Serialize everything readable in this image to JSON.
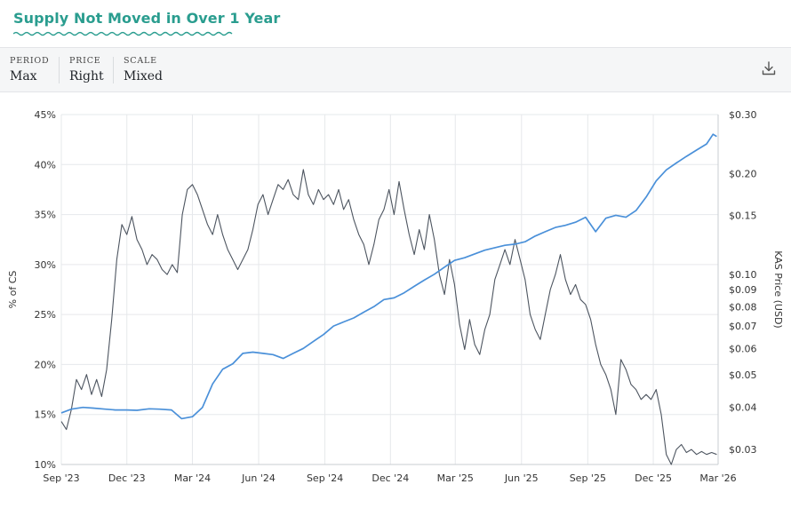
{
  "title": "Supply Not Moved in Over 1 Year",
  "controls": [
    {
      "label": "PERIOD",
      "value": "Max"
    },
    {
      "label": "PRICE",
      "value": "Right"
    },
    {
      "label": "SCALE",
      "value": "Mixed"
    }
  ],
  "download_icon": "download-icon",
  "colors": {
    "title": "#2a9d8f",
    "price_line": "#4a90d9",
    "supply_line": "#4d5560",
    "grid": "#e6e8eb"
  },
  "chart_data": {
    "type": "line",
    "xlabel": "",
    "ylabel_left": "% of CS",
    "ylabel_right": "KAS Price (USD)",
    "x_range": [
      "2023-09-01",
      "2026-03-01"
    ],
    "x_ticks": [
      "Sep '23",
      "Dec '23",
      "Mar '24",
      "Jun '24",
      "Sep '24",
      "Dec '24",
      "Mar '25",
      "Jun '25",
      "Sep '25",
      "Dec '25",
      "Mar '26"
    ],
    "y_left": {
      "min": 10,
      "max": 45,
      "ticks": [
        "10%",
        "15%",
        "20%",
        "25%",
        "30%",
        "35%",
        "40%",
        "45%"
      ]
    },
    "y_right": {
      "scale": "log",
      "min": 0.027,
      "max": 0.3,
      "ticks": [
        {
          "value": 0.3,
          "label": "$0.30"
        },
        {
          "value": 0.2,
          "label": "$0.20"
        },
        {
          "value": 0.15,
          "label": "$0.15"
        },
        {
          "value": 0.1,
          "label": "$0.10"
        },
        {
          "value": 0.09,
          "label": "$0.09"
        },
        {
          "value": 0.08,
          "label": "$0.08"
        },
        {
          "value": 0.07,
          "label": "$0.07"
        },
        {
          "value": 0.06,
          "label": "$0.06"
        },
        {
          "value": 0.05,
          "label": "$0.05"
        },
        {
          "value": 0.04,
          "label": "$0.04"
        },
        {
          "value": 0.03,
          "label": "$0.03"
        }
      ]
    },
    "grid": true,
    "series": [
      {
        "axis": "left",
        "color": "#4d5560",
        "points": [
          [
            "2023-09-01",
            14.3
          ],
          [
            "2023-09-08",
            13.5
          ],
          [
            "2023-09-15",
            15.5
          ],
          [
            "2023-09-22",
            18.5
          ],
          [
            "2023-09-29",
            17.5
          ],
          [
            "2023-10-06",
            19.0
          ],
          [
            "2023-10-13",
            17.0
          ],
          [
            "2023-10-20",
            18.5
          ],
          [
            "2023-10-27",
            16.8
          ],
          [
            "2023-11-03",
            19.5
          ],
          [
            "2023-11-10",
            24.5
          ],
          [
            "2023-11-17",
            30.5
          ],
          [
            "2023-11-24",
            34.0
          ],
          [
            "2023-12-01",
            33.0
          ],
          [
            "2023-12-08",
            34.8
          ],
          [
            "2023-12-15",
            32.5
          ],
          [
            "2023-12-22",
            31.5
          ],
          [
            "2023-12-29",
            30.0
          ],
          [
            "2024-01-05",
            31.0
          ],
          [
            "2024-01-12",
            30.5
          ],
          [
            "2024-01-19",
            29.5
          ],
          [
            "2024-01-26",
            29.0
          ],
          [
            "2024-02-02",
            30.0
          ],
          [
            "2024-02-09",
            29.2
          ],
          [
            "2024-02-16",
            35.0
          ],
          [
            "2024-02-23",
            37.5
          ],
          [
            "2024-03-01",
            38.0
          ],
          [
            "2024-03-08",
            37.0
          ],
          [
            "2024-03-15",
            35.5
          ],
          [
            "2024-03-22",
            34.0
          ],
          [
            "2024-03-29",
            33.0
          ],
          [
            "2024-04-05",
            35.0
          ],
          [
            "2024-04-12",
            33.0
          ],
          [
            "2024-04-19",
            31.5
          ],
          [
            "2024-04-26",
            30.5
          ],
          [
            "2024-05-03",
            29.5
          ],
          [
            "2024-05-10",
            30.5
          ],
          [
            "2024-05-17",
            31.5
          ],
          [
            "2024-05-24",
            33.5
          ],
          [
            "2024-05-31",
            36.0
          ],
          [
            "2024-06-07",
            37.0
          ],
          [
            "2024-06-14",
            35.0
          ],
          [
            "2024-06-21",
            36.5
          ],
          [
            "2024-06-28",
            38.0
          ],
          [
            "2024-07-05",
            37.5
          ],
          [
            "2024-07-12",
            38.5
          ],
          [
            "2024-07-19",
            37.0
          ],
          [
            "2024-07-26",
            36.5
          ],
          [
            "2024-08-02",
            39.5
          ],
          [
            "2024-08-09",
            37.0
          ],
          [
            "2024-08-16",
            36.0
          ],
          [
            "2024-08-23",
            37.5
          ],
          [
            "2024-08-30",
            36.5
          ],
          [
            "2024-09-06",
            37.0
          ],
          [
            "2024-09-13",
            36.0
          ],
          [
            "2024-09-20",
            37.5
          ],
          [
            "2024-09-27",
            35.5
          ],
          [
            "2024-10-04",
            36.5
          ],
          [
            "2024-10-11",
            34.5
          ],
          [
            "2024-10-18",
            33.0
          ],
          [
            "2024-10-25",
            32.0
          ],
          [
            "2024-11-01",
            30.0
          ],
          [
            "2024-11-08",
            32.0
          ],
          [
            "2024-11-15",
            34.5
          ],
          [
            "2024-11-22",
            35.5
          ],
          [
            "2024-11-29",
            37.5
          ],
          [
            "2024-12-06",
            35.0
          ],
          [
            "2024-12-13",
            38.3
          ],
          [
            "2024-12-20",
            35.5
          ],
          [
            "2024-12-27",
            33.0
          ],
          [
            "2025-01-03",
            31.0
          ],
          [
            "2025-01-10",
            33.5
          ],
          [
            "2025-01-17",
            31.5
          ],
          [
            "2025-01-24",
            35.0
          ],
          [
            "2025-01-31",
            32.5
          ],
          [
            "2025-02-07",
            29.0
          ],
          [
            "2025-02-14",
            27.0
          ],
          [
            "2025-02-21",
            30.5
          ],
          [
            "2025-02-28",
            28.0
          ],
          [
            "2025-03-07",
            24.0
          ],
          [
            "2025-03-14",
            21.5
          ],
          [
            "2025-03-21",
            24.5
          ],
          [
            "2025-03-28",
            22.0
          ],
          [
            "2025-04-04",
            21.0
          ],
          [
            "2025-04-11",
            23.5
          ],
          [
            "2025-04-18",
            25.0
          ],
          [
            "2025-04-25",
            28.5
          ],
          [
            "2025-05-02",
            30.0
          ],
          [
            "2025-05-09",
            31.5
          ],
          [
            "2025-05-16",
            30.0
          ],
          [
            "2025-05-23",
            32.5
          ],
          [
            "2025-05-30",
            30.5
          ],
          [
            "2025-06-06",
            28.5
          ],
          [
            "2025-06-13",
            25.0
          ],
          [
            "2025-06-20",
            23.5
          ],
          [
            "2025-06-27",
            22.5
          ],
          [
            "2025-07-04",
            25.0
          ],
          [
            "2025-07-11",
            27.5
          ],
          [
            "2025-07-18",
            29.0
          ],
          [
            "2025-07-25",
            31.0
          ],
          [
            "2025-08-01",
            28.5
          ],
          [
            "2025-08-08",
            27.0
          ],
          [
            "2025-08-15",
            28.0
          ],
          [
            "2025-08-22",
            26.5
          ],
          [
            "2025-08-29",
            26.0
          ],
          [
            "2025-09-05",
            24.5
          ],
          [
            "2025-09-12",
            22.0
          ],
          [
            "2025-09-19",
            20.0
          ],
          [
            "2025-09-26",
            19.0
          ],
          [
            "2025-10-03",
            17.5
          ],
          [
            "2025-10-10",
            15.0
          ],
          [
            "2025-10-17",
            20.5
          ],
          [
            "2025-10-24",
            19.5
          ],
          [
            "2025-10-31",
            18.0
          ],
          [
            "2025-11-07",
            17.5
          ],
          [
            "2025-11-14",
            16.5
          ],
          [
            "2025-11-21",
            17.0
          ],
          [
            "2025-11-28",
            16.5
          ],
          [
            "2025-12-05",
            17.5
          ],
          [
            "2025-12-12",
            15.0
          ],
          [
            "2025-12-19",
            11.0
          ],
          [
            "2025-12-26",
            10.0
          ],
          [
            "2026-01-02",
            11.5
          ],
          [
            "2026-01-09",
            12.0
          ],
          [
            "2026-01-16",
            11.2
          ],
          [
            "2026-01-23",
            11.5
          ],
          [
            "2026-01-30",
            11.0
          ],
          [
            "2026-02-06",
            11.3
          ],
          [
            "2026-02-13",
            11.0
          ],
          [
            "2026-02-20",
            11.2
          ],
          [
            "2026-02-27",
            11.0
          ]
        ]
      },
      {
        "axis": "right",
        "color": "#4a90d9",
        "points": [
          [
            "2023-09-01",
            0.0385
          ],
          [
            "2023-09-15",
            0.0395
          ],
          [
            "2023-10-01",
            0.04
          ],
          [
            "2023-10-15",
            0.0398
          ],
          [
            "2023-11-01",
            0.0395
          ],
          [
            "2023-11-15",
            0.0393
          ],
          [
            "2023-12-01",
            0.0393
          ],
          [
            "2023-12-15",
            0.0392
          ],
          [
            "2024-01-01",
            0.0396
          ],
          [
            "2024-01-15",
            0.0395
          ],
          [
            "2024-02-01",
            0.0393
          ],
          [
            "2024-02-15",
            0.037
          ],
          [
            "2024-03-01",
            0.0375
          ],
          [
            "2024-03-15",
            0.04
          ],
          [
            "2024-03-29",
            0.047
          ],
          [
            "2024-04-12",
            0.052
          ],
          [
            "2024-04-26",
            0.054
          ],
          [
            "2024-05-10",
            0.058
          ],
          [
            "2024-05-24",
            0.0585
          ],
          [
            "2024-06-07",
            0.058
          ],
          [
            "2024-06-21",
            0.0575
          ],
          [
            "2024-07-05",
            0.056
          ],
          [
            "2024-07-19",
            0.058
          ],
          [
            "2024-08-02",
            0.06
          ],
          [
            "2024-08-16",
            0.063
          ],
          [
            "2024-08-30",
            0.066
          ],
          [
            "2024-09-13",
            0.07
          ],
          [
            "2024-09-27",
            0.072
          ],
          [
            "2024-10-11",
            0.074
          ],
          [
            "2024-10-25",
            0.077
          ],
          [
            "2024-11-08",
            0.08
          ],
          [
            "2024-11-22",
            0.084
          ],
          [
            "2024-12-06",
            0.085
          ],
          [
            "2024-12-20",
            0.088
          ],
          [
            "2025-01-03",
            0.092
          ],
          [
            "2025-01-17",
            0.096
          ],
          [
            "2025-01-31",
            0.1
          ],
          [
            "2025-02-14",
            0.105
          ],
          [
            "2025-02-28",
            0.11
          ],
          [
            "2025-03-14",
            0.112
          ],
          [
            "2025-03-28",
            0.115
          ],
          [
            "2025-04-11",
            0.118
          ],
          [
            "2025-04-25",
            0.12
          ],
          [
            "2025-05-09",
            0.122
          ],
          [
            "2025-05-23",
            0.123
          ],
          [
            "2025-06-06",
            0.125
          ],
          [
            "2025-06-20",
            0.13
          ],
          [
            "2025-07-04",
            0.134
          ],
          [
            "2025-07-18",
            0.138
          ],
          [
            "2025-08-01",
            0.14
          ],
          [
            "2025-08-15",
            0.143
          ],
          [
            "2025-08-29",
            0.148
          ],
          [
            "2025-09-12",
            0.134
          ],
          [
            "2025-09-26",
            0.147
          ],
          [
            "2025-10-10",
            0.15
          ],
          [
            "2025-10-24",
            0.148
          ],
          [
            "2025-11-07",
            0.155
          ],
          [
            "2025-11-21",
            0.17
          ],
          [
            "2025-12-05",
            0.19
          ],
          [
            "2025-12-19",
            0.205
          ],
          [
            "2026-01-02",
            0.215
          ],
          [
            "2026-01-16",
            0.225
          ],
          [
            "2026-01-30",
            0.235
          ],
          [
            "2026-02-13",
            0.245
          ],
          [
            "2026-02-22",
            0.262
          ],
          [
            "2026-02-27",
            0.258
          ]
        ]
      }
    ]
  }
}
